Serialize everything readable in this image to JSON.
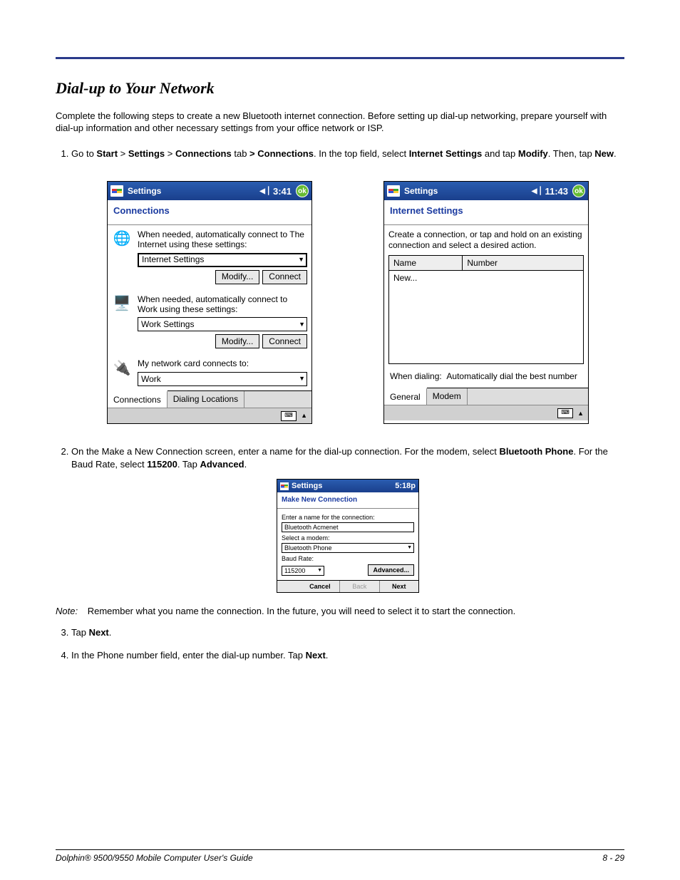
{
  "page": {
    "section_title": "Dial-up to Your Network",
    "intro": "Complete the following steps to create a new Bluetooth internet connection. Before setting up dial-up networking, prepare yourself with dial-up information and other necessary settings from your office network or ISP.",
    "footer_left": "Dolphin® 9500/9550 Mobile Computer User's Guide",
    "footer_right": "8 - 29"
  },
  "steps": {
    "s1_pre": "Go to ",
    "s1_start": "Start",
    "s1_gt1": " > ",
    "s1_settings": "Settings",
    "s1_gt2": " > ",
    "s1_conn_tab": "Connections",
    "s1_tab_word": " tab ",
    "s1_gt3": "> ",
    "s1_conn2": "Connections",
    "s1_mid": ". In the top field, select ",
    "s1_internet": "Internet Settings",
    "s1_andtap": " and tap ",
    "s1_modify": "Modify",
    "s1_then": ". Then, tap ",
    "s1_new": "New",
    "s1_period": ".",
    "s2_pre": "On the Make a New Connection screen, enter a name for the dial-up connection. For the modem, select ",
    "s2_bt": "Bluetooth Phone",
    "s2_mid": ". For the Baud Rate, select ",
    "s2_baud": "115200",
    "s2_tap": ". Tap ",
    "s2_adv": "Advanced",
    "s2_period": ".",
    "s3_pre": "Tap ",
    "s3_next": "Next",
    "s3_period": ".",
    "s4_pre": "In the Phone number field, enter the dial-up number. Tap ",
    "s4_next": "Next",
    "s4_period": "."
  },
  "note": {
    "label": "Note:",
    "text": "Remember what you name the connection. In the future, you will need to select it to start the connection."
  },
  "pda1": {
    "title": "Settings",
    "time": "3:41",
    "ok": "ok",
    "subtitle": "Connections",
    "row1_text": "When needed, automatically connect to The Internet using these settings:",
    "row1_select": "Internet Settings",
    "btn_modify": "Modify...",
    "btn_connect": "Connect",
    "row2_text": "When needed, automatically connect to Work using these settings:",
    "row2_select": "Work Settings",
    "row3_text": "My network card connects to:",
    "row3_select": "Work",
    "tab1": "Connections",
    "tab2": "Dialing Locations"
  },
  "pda2": {
    "title": "Settings",
    "time": "11:43",
    "ok": "ok",
    "subtitle": "Internet Settings",
    "instr": "Create a connection, or tap and hold on an existing connection and select a desired action.",
    "col_name": "Name",
    "col_number": "Number",
    "row_new": "New...",
    "dial_label": "When dialing:",
    "dial_value": "Automatically dial the best number",
    "tab1": "General",
    "tab2": "Modem"
  },
  "pda3": {
    "title": "Settings",
    "time": "5:18p",
    "subtitle": "Make New Connection",
    "lbl_name": "Enter a name for the connection:",
    "val_name": "Bluetooth Acmenet",
    "lbl_modem": "Select a modem:",
    "val_modem": "Bluetooth Phone",
    "lbl_baud": "Baud Rate:",
    "val_baud": "115200",
    "btn_adv": "Advanced...",
    "btn_cancel": "Cancel",
    "btn_back": "Back",
    "btn_next": "Next"
  }
}
